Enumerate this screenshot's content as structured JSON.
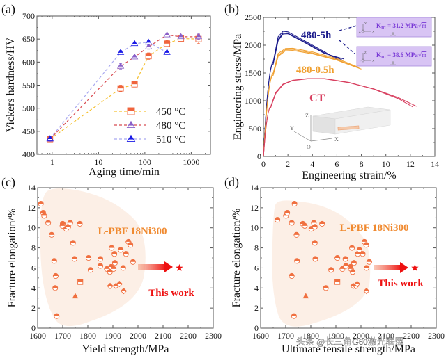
{
  "chart_data": [
    {
      "panel": "(a)",
      "type": "line",
      "xlabel": "Aging time/min",
      "ylabel": "Vickers hardness/HV",
      "xscale": "log",
      "xlim": [
        0.47,
        2600
      ],
      "ylim": [
        400,
        700
      ],
      "xticks": [
        1,
        10,
        100,
        1000
      ],
      "xtick_labels": [
        "1",
        "10",
        "100",
        "1000"
      ],
      "yticks": [
        400,
        450,
        500,
        550,
        600,
        650,
        700
      ],
      "ytick_labels": [
        "400",
        "450",
        "500",
        "550",
        "600",
        "650",
        "700"
      ],
      "legend_position": "bottom-right",
      "series": [
        {
          "name": "450 °C",
          "marker": "square-half",
          "color": "#f0643c",
          "line_color": "#f5c030",
          "x": [
            0.9,
            30,
            60,
            120,
            300,
            600,
            1440
          ],
          "y": [
            433,
            543,
            552,
            613,
            640,
            651,
            650
          ],
          "err": [
            5,
            7,
            6,
            7,
            7,
            5,
            10
          ]
        },
        {
          "name": "480 °C",
          "marker": "triangle-half",
          "color": "#8a60c8",
          "line_color": "#d84a50",
          "x": [
            0.9,
            30,
            60,
            120,
            300,
            600,
            1440
          ],
          "y": [
            433,
            591,
            611,
            633,
            659,
            655,
            655
          ],
          "err": [
            5,
            6,
            4,
            5,
            4,
            4,
            6
          ]
        },
        {
          "name": "510 °C",
          "marker": "triangle-half",
          "color": "#1a1ae6",
          "line_color": "#a8a8f0",
          "x": [
            0.9,
            30,
            60,
            120,
            300
          ],
          "y": [
            434,
            621,
            640,
            643,
            621
          ],
          "err": [
            4,
            4,
            3,
            4,
            3
          ]
        }
      ]
    },
    {
      "panel": "(b)",
      "type": "line",
      "xlabel": "Engineering strain/%",
      "ylabel": "Engineering stress/MPa",
      "xlim": [
        0,
        14
      ],
      "ylim": [
        0,
        2500
      ],
      "xticks": [
        0,
        2,
        4,
        6,
        8,
        10,
        12,
        14
      ],
      "xtick_labels": [
        "0",
        "2",
        "4",
        "6",
        "8",
        "10",
        "12",
        "14"
      ],
      "yticks": [
        0,
        500,
        1000,
        1500,
        2000,
        2500
      ],
      "ytick_labels": [
        "0",
        "500",
        "1000",
        "1500",
        "2000",
        "2500"
      ],
      "series": [
        {
          "name": "480-5h",
          "color": "#1c1c8c",
          "label_color": "#1c1c8c",
          "curves": [
            {
              "x": [
                0,
                0.8,
                1.2,
                1.6,
                2.0,
                3.0,
                4.0,
                5.0,
                6.2
              ],
              "y": [
                0,
                1700,
                2150,
                2250,
                2240,
                2120,
                2000,
                1880,
                1720
              ]
            },
            {
              "x": [
                0,
                0.8,
                1.2,
                1.6,
                2.0,
                3.0,
                4.0,
                5.0,
                6.4
              ],
              "y": [
                0,
                1680,
                2100,
                2220,
                2215,
                2100,
                1980,
                1860,
                1740
              ]
            },
            {
              "x": [
                0,
                0.8,
                1.2,
                1.6,
                2.0,
                3.0,
                4.0,
                5.0,
                6.6
              ],
              "y": [
                0,
                1660,
                2080,
                2200,
                2205,
                2090,
                1970,
                1850,
                1750
              ]
            }
          ]
        },
        {
          "name": "480-0.5h",
          "color": "#f0a030",
          "label_color": "#f0a030",
          "curves": [
            {
              "x": [
                0,
                0.8,
                1.2,
                1.8,
                2.4,
                4.0,
                6.0,
                7.8
              ],
              "y": [
                0,
                1500,
                1850,
                1940,
                1945,
                1880,
                1760,
                1600
              ]
            },
            {
              "x": [
                0,
                0.8,
                1.2,
                1.8,
                2.4,
                4.0,
                6.0,
                7.9
              ],
              "y": [
                0,
                1480,
                1820,
                1920,
                1925,
                1860,
                1740,
                1580
              ]
            },
            {
              "x": [
                0,
                0.8,
                1.2,
                1.8,
                2.4,
                4.0,
                6.0,
                8.0
              ],
              "y": [
                0,
                1460,
                1800,
                1900,
                1905,
                1845,
                1730,
                1570
              ]
            }
          ]
        },
        {
          "name": "CT",
          "color": "#d84060",
          "label_color": "#d84060",
          "curves": [
            {
              "x": [
                0,
                0.6,
                1.0,
                1.6,
                2.4,
                3.6,
                5.0,
                7.0,
                9.0,
                11.0,
                12.2
              ],
              "y": [
                0,
                900,
                1150,
                1300,
                1370,
                1400,
                1400,
                1330,
                1210,
                1040,
                890
              ]
            },
            {
              "x": [
                0,
                0.6,
                1.0,
                1.6,
                2.4,
                3.6,
                5.0,
                7.0,
                9.0,
                11.0,
                12.5
              ],
              "y": [
                0,
                880,
                1130,
                1290,
                1365,
                1395,
                1395,
                1325,
                1215,
                1060,
                900
              ]
            }
          ]
        }
      ],
      "annotations": [
        {
          "text": "K",
          "sub": "IC",
          "value": " = 31.2 MPa",
          "root": "m",
          "axes": "z-y-x"
        },
        {
          "text": "K",
          "sub": "IC",
          "value": " = 38.6 MPa",
          "root": "m",
          "axes": "y-z-x"
        }
      ],
      "inset_axes": {
        "z": "Z",
        "y": "Y",
        "x": "X",
        "o": "O"
      }
    },
    {
      "panel": "(c)",
      "type": "scatter",
      "xlabel": "Yield strength/MPa",
      "ylabel": "Fracture elongation/%",
      "xlim": [
        1600,
        2300
      ],
      "ylim": [
        0,
        14
      ],
      "xticks": [
        1600,
        1700,
        1800,
        1900,
        2000,
        2100,
        2200,
        2300
      ],
      "xtick_labels": [
        "1600",
        "1700",
        "1800",
        "1900",
        "2000",
        "2100",
        "2200",
        "2300"
      ],
      "yticks": [
        0,
        2,
        4,
        6,
        8,
        10,
        12,
        14
      ],
      "ytick_labels": [
        "0",
        "2",
        "4",
        "6",
        "8",
        "10",
        "12",
        "14"
      ],
      "region_label": "L-PBF 18Ni300",
      "this_work_label": "This work",
      "this_work": {
        "x": 2165,
        "y": 6.0
      },
      "points": [
        {
          "x": 1613,
          "y": 12.4,
          "m": "c"
        },
        {
          "x": 1622,
          "y": 11.5,
          "m": "c"
        },
        {
          "x": 1626,
          "y": 11.2,
          "m": "c"
        },
        {
          "x": 1642,
          "y": 10.5,
          "m": "c"
        },
        {
          "x": 1656,
          "y": 9.3,
          "m": "c"
        },
        {
          "x": 1666,
          "y": 6.7,
          "m": "c"
        },
        {
          "x": 1672,
          "y": 5.2,
          "m": "c"
        },
        {
          "x": 1670,
          "y": 4.0,
          "m": "c"
        },
        {
          "x": 1676,
          "y": 1.2,
          "m": "c"
        },
        {
          "x": 1700,
          "y": 10.4,
          "m": "c"
        },
        {
          "x": 1699,
          "y": 10.2,
          "m": "c"
        },
        {
          "x": 1714,
          "y": 9.9,
          "m": "c"
        },
        {
          "x": 1722,
          "y": 10.1,
          "m": "c"
        },
        {
          "x": 1730,
          "y": 10.5,
          "m": "c"
        },
        {
          "x": 1741,
          "y": 8.5,
          "m": "c"
        },
        {
          "x": 1747,
          "y": 6.9,
          "m": "c"
        },
        {
          "x": 1750,
          "y": 3.2,
          "m": "t"
        },
        {
          "x": 1768,
          "y": 10.4,
          "m": "c"
        },
        {
          "x": 1770,
          "y": 4.6,
          "m": "s"
        },
        {
          "x": 1803,
          "y": 7.0,
          "m": "c"
        },
        {
          "x": 1811,
          "y": 5.8,
          "m": "c"
        },
        {
          "x": 1850,
          "y": 6.9,
          "m": "c"
        },
        {
          "x": 1850,
          "y": 6.2,
          "m": "c"
        },
        {
          "x": 1876,
          "y": 5.9,
          "m": "c"
        },
        {
          "x": 1888,
          "y": 5.6,
          "m": "c"
        },
        {
          "x": 1893,
          "y": 6.1,
          "m": "c"
        },
        {
          "x": 1895,
          "y": 8.0,
          "m": "c"
        },
        {
          "x": 1903,
          "y": 5.9,
          "m": "c"
        },
        {
          "x": 1906,
          "y": 7.4,
          "m": "c"
        },
        {
          "x": 1908,
          "y": 6.5,
          "m": "c"
        },
        {
          "x": 1889,
          "y": 4.2,
          "m": "d"
        },
        {
          "x": 1912,
          "y": 4.2,
          "m": "d"
        },
        {
          "x": 1926,
          "y": 4.4,
          "m": "d"
        },
        {
          "x": 1931,
          "y": 7.8,
          "m": "c"
        },
        {
          "x": 1941,
          "y": 6.0,
          "m": "c"
        },
        {
          "x": 1943,
          "y": 3.7,
          "m": "d"
        },
        {
          "x": 1952,
          "y": 7.4,
          "m": "c"
        },
        {
          "x": 1962,
          "y": 8.6,
          "m": "c"
        },
        {
          "x": 1970,
          "y": 8.3,
          "m": "c"
        },
        {
          "x": 1980,
          "y": 6.6,
          "m": "c"
        }
      ]
    },
    {
      "panel": "(d)",
      "type": "scatter",
      "xlabel": "Ultimate tensile strength/MPa",
      "ylabel": "Fracture elongation/%",
      "xlim": [
        1600,
        2300
      ],
      "ylim": [
        0,
        14
      ],
      "xticks": [
        1600,
        1700,
        1800,
        1900,
        2000,
        2100,
        2200,
        2300
      ],
      "xtick_labels": [
        "1600",
        "1700",
        "1800",
        "1900",
        "2000",
        "2100",
        "2200",
        "2300"
      ],
      "yticks": [
        0,
        2,
        4,
        6,
        8,
        10,
        12,
        14
      ],
      "ytick_labels": [
        "0",
        "2",
        "4",
        "6",
        "8",
        "10",
        "12",
        "14"
      ],
      "region_label": "L-PBF 18Ni300",
      "this_work_label": "This work",
      "this_work": {
        "x": 2215,
        "y": 6.0
      },
      "points": [
        {
          "x": 1667,
          "y": 10.8,
          "m": "c"
        },
        {
          "x": 1701,
          "y": 11.2,
          "m": "c"
        },
        {
          "x": 1706,
          "y": 11.5,
          "m": "c"
        },
        {
          "x": 1724,
          "y": 10.5,
          "m": "c"
        },
        {
          "x": 1724,
          "y": 5.2,
          "m": "c"
        },
        {
          "x": 1735,
          "y": 12.4,
          "m": "c"
        },
        {
          "x": 1733,
          "y": 1.2,
          "m": "c"
        },
        {
          "x": 1743,
          "y": 9.3,
          "m": "c"
        },
        {
          "x": 1745,
          "y": 6.7,
          "m": "c"
        },
        {
          "x": 1768,
          "y": 10.4,
          "m": "c"
        },
        {
          "x": 1776,
          "y": 10.2,
          "m": "c"
        },
        {
          "x": 1780,
          "y": 3.2,
          "m": "t"
        },
        {
          "x": 1802,
          "y": 9.9,
          "m": "c"
        },
        {
          "x": 1812,
          "y": 10.5,
          "m": "c"
        },
        {
          "x": 1816,
          "y": 10.1,
          "m": "c"
        },
        {
          "x": 1816,
          "y": 8.5,
          "m": "c"
        },
        {
          "x": 1818,
          "y": 6.9,
          "m": "c"
        },
        {
          "x": 1845,
          "y": 10.4,
          "m": "c"
        },
        {
          "x": 1860,
          "y": 4.0,
          "m": "c"
        },
        {
          "x": 1881,
          "y": 5.8,
          "m": "c"
        },
        {
          "x": 1906,
          "y": 7.0,
          "m": "c"
        },
        {
          "x": 1906,
          "y": 4.6,
          "m": "s"
        },
        {
          "x": 1926,
          "y": 5.9,
          "m": "c"
        },
        {
          "x": 1938,
          "y": 6.9,
          "m": "c"
        },
        {
          "x": 1940,
          "y": 6.2,
          "m": "c"
        },
        {
          "x": 1958,
          "y": 6.1,
          "m": "c"
        },
        {
          "x": 1960,
          "y": 5.9,
          "m": "c"
        },
        {
          "x": 1964,
          "y": 8.0,
          "m": "c"
        },
        {
          "x": 1967,
          "y": 5.6,
          "m": "c"
        },
        {
          "x": 1972,
          "y": 6.5,
          "m": "c"
        },
        {
          "x": 1969,
          "y": 4.2,
          "m": "d"
        },
        {
          "x": 1980,
          "y": 4.2,
          "m": "d"
        },
        {
          "x": 1985,
          "y": 4.4,
          "m": "d"
        },
        {
          "x": 1987,
          "y": 7.4,
          "m": "c"
        },
        {
          "x": 1994,
          "y": 7.8,
          "m": "c"
        },
        {
          "x": 2007,
          "y": 7.4,
          "m": "c"
        },
        {
          "x": 2014,
          "y": 8.6,
          "m": "c"
        },
        {
          "x": 2021,
          "y": 8.3,
          "m": "c"
        },
        {
          "x": 2022,
          "y": 6.0,
          "m": "c"
        },
        {
          "x": 2022,
          "y": 3.7,
          "m": "d"
        },
        {
          "x": 2033,
          "y": 6.6,
          "m": "c"
        }
      ]
    }
  ],
  "panel_labels": [
    "(a)",
    "(b)",
    "(c)",
    "(d)"
  ],
  "colors": {
    "scatter": "#f07040",
    "region_fill": "#fcefe6",
    "region_label": "#f08a30",
    "this_work": "#ee1111",
    "inset_box_fill": "#d8c4f4",
    "inset_box_stroke": "#a78bdc",
    "inset_text": "#7a3ad6",
    "axis": "#333333"
  },
  "watermark": "头条 @长三角G60激光联盟"
}
